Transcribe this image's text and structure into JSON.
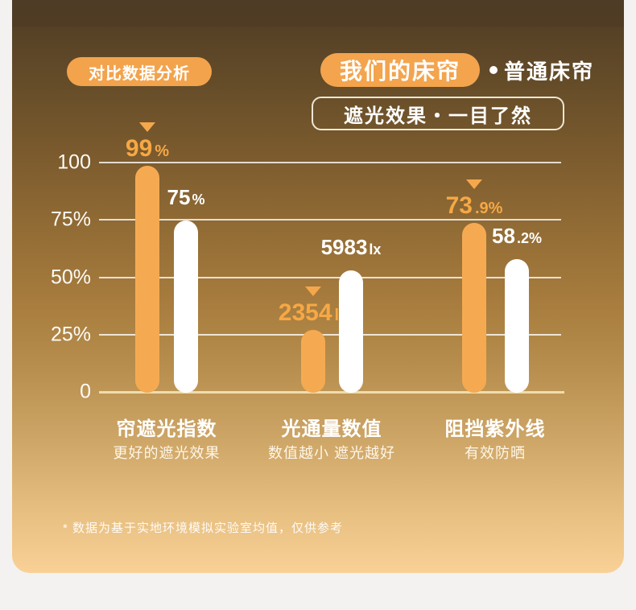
{
  "header": {
    "badge": "对比数据分析",
    "legend_ours": "我们的床帘",
    "legend_ordinary": "普通床帘",
    "subtitle": "遮光效果・一目了然"
  },
  "colors": {
    "accent_orange": "#F5A94F",
    "bar_ours": "#F5AA52",
    "bar_ordinary": "#FFFFFF",
    "baseline_cream": "#F0DCAE",
    "bg_gradient_top": "#524029",
    "bg_gradient_bottom": "#F9D096",
    "page_background": "#F3F2F0"
  },
  "chart_data": {
    "type": "bar",
    "title": "遮光效果・一目了然",
    "xlabel": "",
    "ylabel": "",
    "ylim": [
      0,
      100
    ],
    "grid": true,
    "legend_position": "top-right",
    "axis_ticks": [
      {
        "label": "100",
        "value": 100
      },
      {
        "label": "75%",
        "value": 75
      },
      {
        "label": "50%",
        "value": 50
      },
      {
        "label": "25%",
        "value": 25
      },
      {
        "label": "0",
        "value": 0
      }
    ],
    "categories": [
      "帘遮光指数",
      "光通量数值",
      "阻挡紫外线"
    ],
    "category_notes": [
      "更好的遮光效果",
      "数值越小 遮光越好",
      "有效防晒"
    ],
    "series": [
      {
        "name": "我们的床帘",
        "role": "ours",
        "color": "#F5AA52",
        "marker": "triangle-down",
        "values": [
          {
            "display": "99%",
            "main": "99",
            "suffix": "%",
            "bar_height_pct": 99
          },
          {
            "display": "2354lx",
            "main": "2354",
            "suffix": "lx",
            "bar_height_pct": 27.5
          },
          {
            "display": "73.9%",
            "main": "73",
            "suffix": ".9%",
            "bar_height_pct": 73.9
          }
        ]
      },
      {
        "name": "普通床帘",
        "role": "ordinary",
        "color": "#FFFFFF",
        "marker": "none",
        "values": [
          {
            "display": "75%",
            "main": "75",
            "suffix": "%",
            "bar_height_pct": 75
          },
          {
            "display": "5983lx",
            "main": "5983",
            "suffix": "lx",
            "bar_height_pct": 53.3
          },
          {
            "display": "58.2%",
            "main": "58",
            "suffix": ".2%",
            "bar_height_pct": 58.2
          }
        ]
      }
    ]
  },
  "footnote": "* 数据为基于实地环境模拟实验室均值，仅供参考"
}
